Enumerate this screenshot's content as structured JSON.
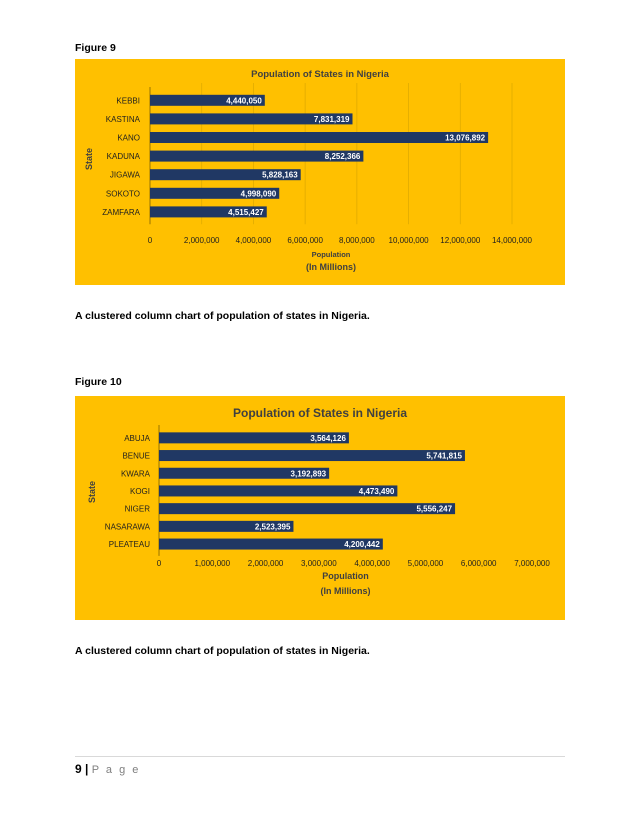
{
  "page": {
    "figure9_label": "Figure 9",
    "figure10_label": "Figure 10",
    "caption1": "A clustered column chart of population of states in Nigeria.",
    "caption2": "A clustered column chart of population of states in Nigeria.",
    "footer_number": "9",
    "footer_sep": "|",
    "footer_page": "P a g e"
  },
  "colors": {
    "background": "#FFC000",
    "bar": "#203864",
    "text": "#1f1f1f"
  },
  "chart_data": [
    {
      "type": "bar",
      "orientation": "horizontal",
      "title": "Population of States in Nigeria",
      "xlabel": "Population",
      "xlabel_sub": "(In Millions)",
      "ylabel": "State",
      "categories": [
        "KEBBI",
        "KASTINA",
        "KANO",
        "KADUNA",
        "JIGAWA",
        "SOKOTO",
        "ZAMFARA"
      ],
      "values": [
        4440050,
        7831319,
        13076892,
        8252366,
        5828163,
        4998090,
        4515427
      ],
      "value_labels": [
        "4,440,050",
        "7,831,319",
        "13,076,892",
        "8,252,366",
        "5,828,163",
        "4,998,090",
        "4,515,427"
      ],
      "xlim": [
        0,
        14000000
      ],
      "xticks": [
        0,
        2000000,
        4000000,
        6000000,
        8000000,
        10000000,
        12000000,
        14000000
      ],
      "xtick_labels": [
        "0",
        "2,000,000",
        "4,000,000",
        "6,000,000",
        "8,000,000",
        "10,000,000",
        "12,000,000",
        "14,000,000"
      ],
      "grid": true
    },
    {
      "type": "bar",
      "orientation": "horizontal",
      "title": "Population of States in Nigeria",
      "xlabel": "Population",
      "xlabel_sub": "(In Millions)",
      "ylabel": "State",
      "categories": [
        "ABUJA",
        "BENUE",
        "KWARA",
        "KOGI",
        "NIGER",
        "NASARAWA",
        "PLEATEAU"
      ],
      "values": [
        3564126,
        5741815,
        3192893,
        4473490,
        5556247,
        2523395,
        4200442
      ],
      "value_labels": [
        "3,564,126",
        "5,741,815",
        "3,192,893",
        "4,473,490",
        "5,556,247",
        "2,523,395",
        "4,200,442"
      ],
      "xlim": [
        0,
        7000000
      ],
      "xticks": [
        0,
        1000000,
        2000000,
        3000000,
        4000000,
        5000000,
        6000000,
        7000000
      ],
      "xtick_labels": [
        "0",
        "1,000,000",
        "2,000,000",
        "3,000,000",
        "4,000,000",
        "5,000,000",
        "6,000,000",
        "7,000,000"
      ],
      "grid": false
    }
  ]
}
